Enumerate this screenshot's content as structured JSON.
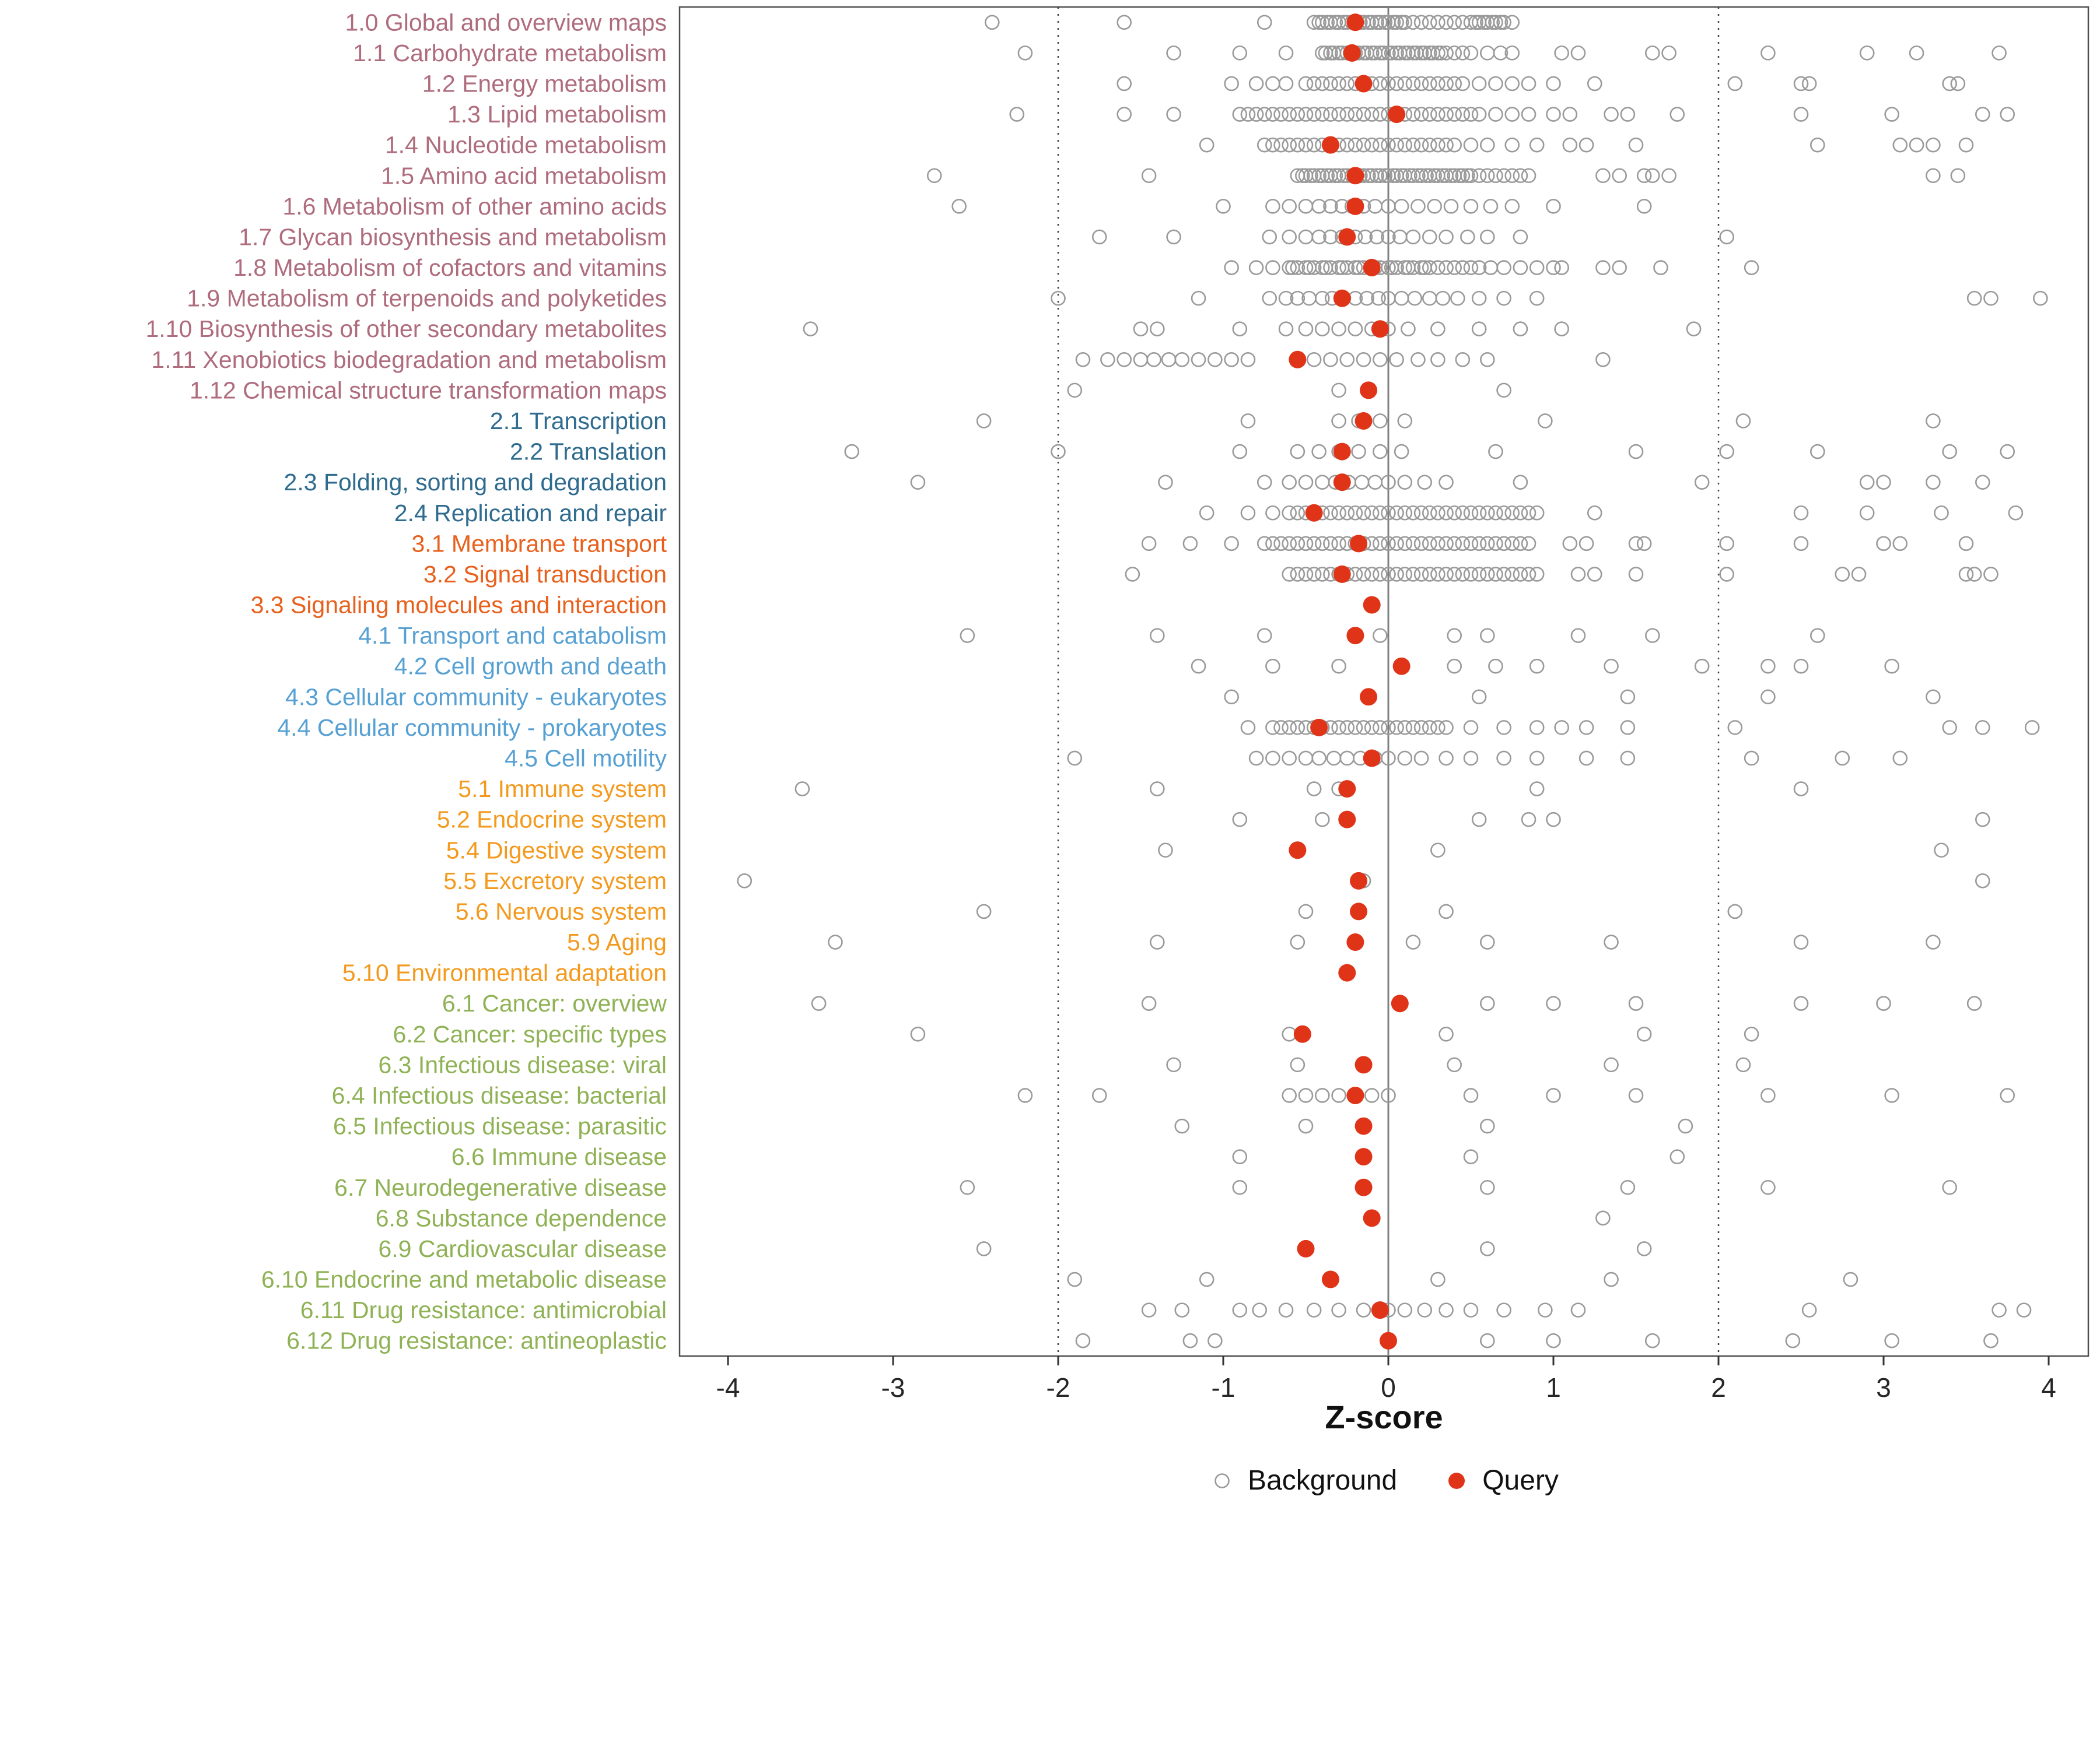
{
  "figure": {
    "legend": {
      "background_label": "Background",
      "query_label": "Query"
    }
  },
  "colors": {
    "query": "#E03418",
    "background_stroke": "#9A9A9A",
    "zero_line": "#808080",
    "ref_line": "#404040",
    "axis_text": "#262626",
    "panel_border": "#4D4D4D"
  },
  "chart_data": {
    "type": "scatter",
    "title": "",
    "xlabel": "Z-score",
    "ylabel": "",
    "xlim": [
      -4.3,
      4.3
    ],
    "x_ticks": [
      -4,
      -3,
      -2,
      -1,
      0,
      1,
      2,
      3,
      4
    ],
    "reference_lines": {
      "solid": [
        0
      ],
      "dotted": [
        -2,
        2
      ]
    },
    "grid": false,
    "legend_position": "bottom",
    "legend_entries": [
      "Background",
      "Query"
    ],
    "label_colors": [
      "#AE6C7D",
      "#2E6B8E",
      "#E8601C",
      "#56A0D3",
      "#F39A1E",
      "#8FB255"
    ],
    "rows": [
      {
        "label": "1.0 Global and overview maps",
        "color": 0,
        "query": -0.2,
        "background": [
          -2.4,
          -1.6,
          -0.75,
          -0.45,
          -0.4,
          -0.35,
          -0.3,
          -0.25,
          -0.2,
          -0.15,
          -0.1,
          -0.05,
          0,
          0.05,
          0.1,
          0.15,
          0.2,
          0.25,
          0.3,
          0.35,
          0.4,
          0.45,
          0.5,
          0.55,
          0.6,
          0.65,
          0.7,
          0.75,
          -0.42,
          -0.37,
          -0.32,
          -0.27,
          -0.22,
          -0.17,
          -0.12,
          -0.07,
          -0.02,
          0.03,
          0.08,
          0.53,
          0.58,
          0.63,
          0.68
        ]
      },
      {
        "label": "1.1 Carbohydrate metabolism",
        "color": 0,
        "query": -0.22,
        "background": [
          -2.2,
          -1.3,
          -0.9,
          -0.62,
          -0.4,
          -0.35,
          -0.3,
          -0.25,
          -0.2,
          -0.15,
          -0.1,
          -0.05,
          0,
          0.05,
          0.1,
          0.15,
          0.2,
          0.25,
          0.3,
          0.35,
          0.4,
          0.45,
          0.5,
          -0.38,
          -0.33,
          -0.28,
          -0.23,
          -0.18,
          -0.13,
          -0.08,
          -0.03,
          0.02,
          0.07,
          0.12,
          0.17,
          0.22,
          0.27,
          0.32,
          0.6,
          0.68,
          0.75,
          1.05,
          1.15,
          1.6,
          1.7,
          2.3,
          2.9,
          3.2,
          3.7
        ]
      },
      {
        "label": "1.2 Energy metabolism",
        "color": 0,
        "query": -0.15,
        "background": [
          -1.6,
          -0.95,
          -0.8,
          -0.7,
          -0.62,
          -0.5,
          -0.45,
          -0.4,
          -0.35,
          -0.3,
          -0.25,
          -0.2,
          -0.15,
          -0.1,
          -0.05,
          0,
          0.05,
          0.1,
          0.15,
          0.2,
          0.25,
          0.3,
          0.35,
          0.4,
          0.45,
          0.55,
          0.65,
          0.75,
          0.85,
          1.0,
          1.25,
          2.1,
          2.5,
          2.55,
          3.4,
          3.45
        ]
      },
      {
        "label": "1.3 Lipid metabolism",
        "color": 0,
        "query": 0.05,
        "background": [
          -2.25,
          -1.6,
          -1.3,
          -0.9,
          -0.85,
          -0.8,
          -0.75,
          -0.7,
          -0.65,
          -0.6,
          -0.55,
          -0.5,
          -0.45,
          -0.4,
          -0.35,
          -0.3,
          -0.25,
          -0.2,
          -0.15,
          -0.1,
          -0.05,
          0,
          0.05,
          0.1,
          0.15,
          0.2,
          0.25,
          0.3,
          0.35,
          0.4,
          0.45,
          0.5,
          0.55,
          0.65,
          0.75,
          0.85,
          1.0,
          1.1,
          1.35,
          1.45,
          1.75,
          2.5,
          3.05,
          3.6,
          3.75
        ]
      },
      {
        "label": "1.4 Nucleotide metabolism",
        "color": 0,
        "query": -0.35,
        "background": [
          -1.1,
          -0.75,
          -0.7,
          -0.65,
          -0.6,
          -0.55,
          -0.5,
          -0.45,
          -0.4,
          -0.35,
          -0.3,
          -0.25,
          -0.2,
          -0.15,
          -0.1,
          -0.05,
          0,
          0.05,
          0.1,
          0.15,
          0.2,
          0.25,
          0.3,
          0.35,
          0.4,
          0.5,
          0.6,
          0.75,
          0.9,
          1.1,
          1.2,
          1.5,
          2.6,
          3.1,
          3.2,
          3.3,
          3.5
        ]
      },
      {
        "label": "1.5 Amino acid metabolism",
        "color": 0,
        "query": -0.2,
        "background": [
          -2.75,
          -1.45,
          -0.55,
          -0.5,
          -0.45,
          -0.4,
          -0.35,
          -0.3,
          -0.25,
          -0.2,
          -0.15,
          -0.1,
          -0.05,
          0,
          0.05,
          0.1,
          0.15,
          0.2,
          0.25,
          0.3,
          0.35,
          0.4,
          0.45,
          0.5,
          0.55,
          0.6,
          0.65,
          0.7,
          0.75,
          0.8,
          0.85,
          -0.52,
          -0.47,
          -0.42,
          -0.37,
          -0.32,
          -0.27,
          -0.22,
          -0.17,
          -0.12,
          -0.07,
          -0.02,
          0.03,
          0.08,
          0.13,
          0.18,
          0.23,
          0.28,
          0.33,
          0.38,
          0.43,
          0.48,
          1.3,
          1.4,
          1.55,
          1.6,
          1.7,
          3.3,
          3.45
        ]
      },
      {
        "label": "1.6 Metabolism of other amino acids",
        "color": 0,
        "query": -0.2,
        "background": [
          -2.6,
          -1.0,
          -0.7,
          -0.6,
          -0.5,
          -0.42,
          -0.35,
          -0.28,
          -0.22,
          -0.15,
          -0.08,
          0,
          0.08,
          0.18,
          0.28,
          0.38,
          0.5,
          0.62,
          0.75,
          1.0,
          1.55
        ]
      },
      {
        "label": "1.7 Glycan biosynthesis and metabolism",
        "color": 0,
        "query": -0.25,
        "background": [
          -1.75,
          -1.3,
          -0.72,
          -0.6,
          -0.5,
          -0.42,
          -0.35,
          -0.28,
          -0.2,
          -0.14,
          -0.07,
          0,
          0.07,
          0.15,
          0.25,
          0.35,
          0.48,
          0.6,
          0.8,
          2.05
        ]
      },
      {
        "label": "1.8 Metabolism of cofactors and vitamins",
        "color": 0,
        "query": -0.1,
        "background": [
          -0.95,
          -0.8,
          -0.7,
          -0.6,
          -0.55,
          -0.5,
          -0.45,
          -0.4,
          -0.35,
          -0.3,
          -0.25,
          -0.2,
          -0.15,
          -0.1,
          -0.05,
          0,
          0.05,
          0.1,
          0.15,
          0.2,
          0.25,
          0.3,
          0.35,
          0.4,
          0.45,
          0.5,
          0.55,
          0.62,
          0.7,
          0.8,
          0.9,
          1.0,
          1.05,
          1.3,
          1.4,
          1.65,
          2.2,
          -0.58,
          -0.48,
          -0.38,
          -0.28,
          -0.18,
          -0.08,
          0.02,
          0.12,
          0.22
        ]
      },
      {
        "label": "1.9 Metabolism of terpenoids and polyketides",
        "color": 0,
        "query": -0.28,
        "background": [
          -2.0,
          -1.15,
          -0.72,
          -0.62,
          -0.55,
          -0.48,
          -0.4,
          -0.34,
          -0.27,
          -0.2,
          -0.13,
          -0.06,
          0,
          0.08,
          0.16,
          0.25,
          0.33,
          0.42,
          0.55,
          0.7,
          0.9,
          3.55,
          3.65,
          3.95
        ]
      },
      {
        "label": "1.10 Biosynthesis of other secondary metabolites",
        "color": 0,
        "query": -0.05,
        "background": [
          -3.5,
          -1.5,
          -1.4,
          -0.9,
          -0.62,
          -0.5,
          -0.4,
          -0.3,
          -0.2,
          -0.1,
          0,
          0.12,
          0.3,
          0.55,
          0.8,
          1.05,
          1.85
        ]
      },
      {
        "label": "1.11 Xenobiotics biodegradation and metabolism",
        "color": 0,
        "query": -0.55,
        "background": [
          -1.85,
          -1.7,
          -1.6,
          -1.5,
          -1.42,
          -1.33,
          -1.25,
          -1.15,
          -1.05,
          -0.95,
          -0.85,
          -0.55,
          -0.45,
          -0.35,
          -0.25,
          -0.15,
          -0.05,
          0.05,
          0.18,
          0.3,
          0.45,
          0.6,
          1.3
        ]
      },
      {
        "label": "1.12 Chemical structure transformation maps",
        "color": 0,
        "query": -0.12,
        "background": [
          -1.9,
          -0.3,
          0.7
        ]
      },
      {
        "label": "2.1 Transcription",
        "color": 1,
        "query": -0.15,
        "background": [
          -2.45,
          -0.85,
          -0.3,
          -0.18,
          -0.05,
          0.1,
          0.95,
          2.15,
          3.3
        ]
      },
      {
        "label": "2.2 Translation",
        "color": 1,
        "query": -0.28,
        "background": [
          -3.25,
          -2.0,
          -0.9,
          -0.55,
          -0.42,
          -0.3,
          -0.18,
          -0.05,
          0.08,
          0.65,
          1.5,
          2.05,
          2.6,
          3.4,
          3.75
        ]
      },
      {
        "label": "2.3 Folding, sorting and degradation",
        "color": 1,
        "query": -0.28,
        "background": [
          -2.85,
          -1.35,
          -0.75,
          -0.6,
          -0.5,
          -0.4,
          -0.32,
          -0.24,
          -0.16,
          -0.08,
          0,
          0.1,
          0.22,
          0.35,
          0.8,
          1.9,
          2.9,
          3.0,
          3.3,
          3.6
        ]
      },
      {
        "label": "2.4 Replication and repair",
        "color": 1,
        "query": -0.45,
        "background": [
          -1.1,
          -0.85,
          -0.7,
          -0.6,
          -0.55,
          -0.5,
          -0.45,
          -0.4,
          -0.35,
          -0.3,
          -0.25,
          -0.2,
          -0.15,
          -0.1,
          -0.05,
          0,
          0.05,
          0.1,
          0.15,
          0.2,
          0.25,
          0.3,
          0.35,
          0.4,
          0.45,
          0.5,
          0.55,
          0.6,
          0.65,
          0.7,
          0.75,
          0.8,
          0.85,
          0.9,
          1.25,
          2.5,
          2.9,
          3.35,
          3.8
        ]
      },
      {
        "label": "3.1 Membrane transport",
        "color": 2,
        "query": -0.18,
        "background": [
          -1.45,
          -1.2,
          -0.95,
          -0.75,
          -0.7,
          -0.65,
          -0.6,
          -0.55,
          -0.5,
          -0.45,
          -0.4,
          -0.35,
          -0.3,
          -0.25,
          -0.2,
          -0.15,
          -0.1,
          -0.05,
          0,
          0.05,
          0.1,
          0.15,
          0.2,
          0.25,
          0.3,
          0.35,
          0.4,
          0.45,
          0.5,
          0.55,
          0.6,
          0.65,
          0.7,
          0.75,
          0.8,
          0.85,
          1.1,
          1.2,
          1.5,
          1.55,
          2.05,
          2.5,
          3.0,
          3.1,
          3.5
        ]
      },
      {
        "label": "3.2 Signal transduction",
        "color": 2,
        "query": -0.28,
        "background": [
          -1.55,
          -0.6,
          -0.55,
          -0.5,
          -0.45,
          -0.4,
          -0.35,
          -0.3,
          -0.25,
          -0.2,
          -0.15,
          -0.1,
          -0.05,
          0,
          0.05,
          0.1,
          0.15,
          0.2,
          0.25,
          0.3,
          0.35,
          0.4,
          0.45,
          0.5,
          0.55,
          0.6,
          0.65,
          0.7,
          0.75,
          0.8,
          0.85,
          0.9,
          1.15,
          1.25,
          1.5,
          2.05,
          2.75,
          2.85,
          3.5,
          3.55,
          3.65
        ]
      },
      {
        "label": "3.3 Signaling molecules and interaction",
        "color": 2,
        "query": -0.1,
        "background": []
      },
      {
        "label": "4.1 Transport and catabolism",
        "color": 3,
        "query": -0.2,
        "background": [
          -2.55,
          -1.4,
          -0.75,
          -0.2,
          -0.05,
          0.4,
          0.6,
          1.15,
          1.6,
          2.6
        ]
      },
      {
        "label": "4.2 Cell growth and death",
        "color": 3,
        "query": 0.08,
        "background": [
          -1.15,
          -0.7,
          -0.3,
          0.4,
          0.65,
          0.9,
          1.35,
          1.9,
          2.3,
          2.5,
          3.05
        ]
      },
      {
        "label": "4.3 Cellular community - eukaryotes",
        "color": 3,
        "query": -0.12,
        "background": [
          -0.95,
          0.55,
          1.45,
          2.3,
          3.3
        ]
      },
      {
        "label": "4.4 Cellular community - prokaryotes",
        "color": 3,
        "query": -0.42,
        "background": [
          -0.85,
          -0.7,
          -0.65,
          -0.6,
          -0.55,
          -0.5,
          -0.45,
          -0.4,
          -0.35,
          -0.3,
          -0.25,
          -0.2,
          -0.15,
          -0.1,
          -0.05,
          0,
          0.05,
          0.1,
          0.15,
          0.2,
          0.25,
          0.3,
          0.35,
          0.5,
          0.7,
          0.9,
          1.05,
          1.2,
          1.45,
          2.1,
          3.4,
          3.6,
          3.9
        ]
      },
      {
        "label": "4.5 Cell motility",
        "color": 3,
        "query": -0.1,
        "background": [
          -1.9,
          -0.8,
          -0.7,
          -0.6,
          -0.5,
          -0.42,
          -0.33,
          -0.25,
          -0.17,
          -0.08,
          0,
          0.1,
          0.2,
          0.35,
          0.5,
          0.7,
          0.9,
          1.2,
          1.45,
          2.2,
          2.75,
          3.1
        ]
      },
      {
        "label": "5.1 Immune system",
        "color": 4,
        "query": -0.25,
        "background": [
          -3.55,
          -1.4,
          -0.45,
          -0.3,
          0.9,
          2.5
        ]
      },
      {
        "label": "5.2 Endocrine system",
        "color": 4,
        "query": -0.25,
        "background": [
          -0.9,
          -0.4,
          0.55,
          0.85,
          1.0,
          3.6
        ]
      },
      {
        "label": "5.4 Digestive system",
        "color": 4,
        "query": -0.55,
        "background": [
          -1.35,
          0.3,
          3.35
        ]
      },
      {
        "label": "5.5 Excretory system",
        "color": 4,
        "query": -0.18,
        "background": [
          -3.9,
          -0.15,
          3.6
        ]
      },
      {
        "label": "5.6 Nervous system",
        "color": 4,
        "query": -0.18,
        "background": [
          -2.45,
          -0.5,
          0.35,
          2.1
        ]
      },
      {
        "label": "5.9 Aging",
        "color": 4,
        "query": -0.2,
        "background": [
          -3.35,
          -1.4,
          -0.55,
          0.15,
          0.6,
          1.35,
          2.5,
          3.3
        ]
      },
      {
        "label": "5.10 Environmental adaptation",
        "color": 4,
        "query": -0.25,
        "background": []
      },
      {
        "label": "6.1 Cancer: overview",
        "color": 5,
        "query": 0.07,
        "background": [
          -3.45,
          -1.45,
          0.6,
          1.0,
          1.5,
          2.5,
          3.0,
          3.55
        ]
      },
      {
        "label": "6.2 Cancer: specific types",
        "color": 5,
        "query": -0.52,
        "background": [
          -2.85,
          -0.6,
          0.35,
          1.55,
          2.2
        ]
      },
      {
        "label": "6.3 Infectious disease: viral",
        "color": 5,
        "query": -0.15,
        "background": [
          -1.3,
          -0.55,
          0.4,
          1.35,
          2.15
        ]
      },
      {
        "label": "6.4 Infectious disease: bacterial",
        "color": 5,
        "query": -0.2,
        "background": [
          -2.2,
          -1.75,
          -0.6,
          -0.5,
          -0.4,
          -0.3,
          -0.2,
          -0.1,
          0,
          0.5,
          1.0,
          1.5,
          2.3,
          3.05,
          3.75
        ]
      },
      {
        "label": "6.5 Infectious disease: parasitic",
        "color": 5,
        "query": -0.15,
        "background": [
          -1.25,
          -0.5,
          0.6,
          1.8
        ]
      },
      {
        "label": "6.6 Immune disease",
        "color": 5,
        "query": -0.15,
        "background": [
          -0.9,
          0.5,
          1.75
        ]
      },
      {
        "label": "6.7 Neurodegenerative disease",
        "color": 5,
        "query": -0.15,
        "background": [
          -2.55,
          -0.9,
          0.6,
          1.45,
          2.3,
          3.4
        ]
      },
      {
        "label": "6.8 Substance dependence",
        "color": 5,
        "query": -0.1,
        "background": [
          1.3
        ]
      },
      {
        "label": "6.9 Cardiovascular disease",
        "color": 5,
        "query": -0.5,
        "background": [
          -2.45,
          0.6,
          1.55
        ]
      },
      {
        "label": "6.10 Endocrine and metabolic disease",
        "color": 5,
        "query": -0.35,
        "background": [
          -1.9,
          -1.1,
          0.3,
          1.35,
          2.8
        ]
      },
      {
        "label": "6.11 Drug resistance: antimicrobial",
        "color": 5,
        "query": -0.05,
        "background": [
          -1.45,
          -1.25,
          -0.9,
          -0.78,
          -0.62,
          -0.45,
          -0.3,
          -0.15,
          0,
          0.1,
          0.22,
          0.35,
          0.5,
          0.7,
          0.95,
          1.15,
          2.55,
          3.7,
          3.85
        ]
      },
      {
        "label": "6.12 Drug resistance: antineoplastic",
        "color": 5,
        "query": 0.0,
        "background": [
          -1.85,
          -1.2,
          -1.05,
          0.6,
          1.0,
          1.6,
          2.45,
          3.05,
          3.65
        ]
      }
    ]
  }
}
